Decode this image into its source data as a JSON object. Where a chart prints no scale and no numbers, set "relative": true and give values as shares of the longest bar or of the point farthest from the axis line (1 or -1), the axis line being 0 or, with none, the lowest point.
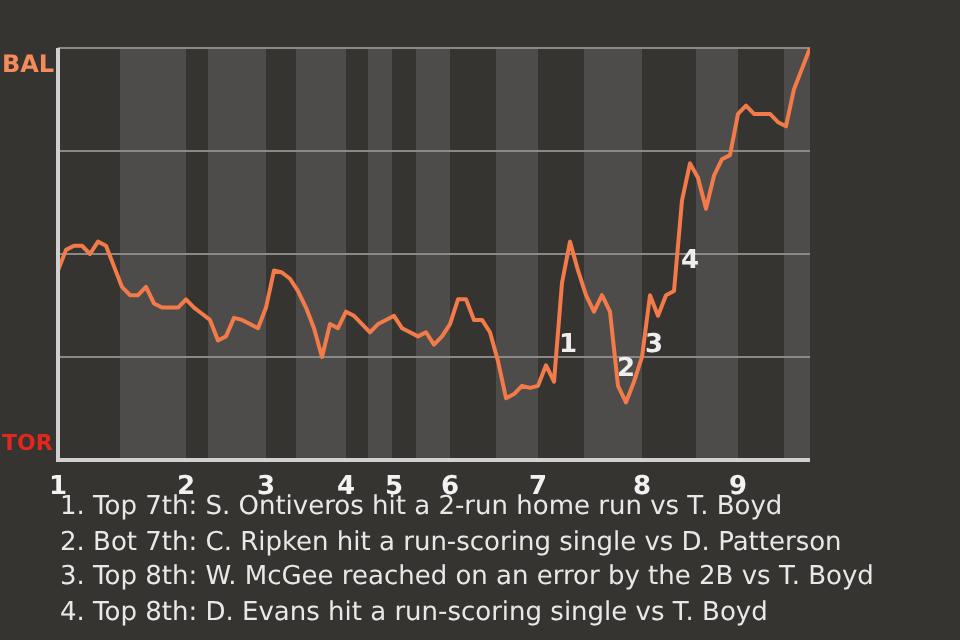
{
  "chart_data": {
    "type": "line",
    "categories": [
      "1",
      null,
      null,
      null,
      null,
      null,
      null,
      null,
      null,
      null,
      null,
      null,
      null,
      null,
      null,
      null,
      "2",
      null,
      null,
      null,
      null,
      null,
      null,
      null,
      null,
      null,
      "3",
      null,
      null,
      null,
      null,
      null,
      null,
      null,
      null,
      null,
      "4",
      null,
      null,
      null,
      null,
      null,
      "5",
      null,
      null,
      null,
      null,
      null,
      null,
      "6",
      null,
      null,
      null,
      null,
      null,
      null,
      null,
      null,
      null,
      null,
      "7",
      null,
      null,
      null,
      null,
      null,
      null,
      null,
      null,
      null,
      null,
      null,
      null,
      "8",
      null,
      null,
      null,
      null,
      null,
      null,
      null,
      null,
      null,
      null,
      null,
      "9",
      null,
      null,
      null,
      null,
      null,
      null,
      null,
      null,
      null
    ],
    "series": [
      {
        "color": "#f37b4a",
        "values": [
          0.46,
          0.51,
          0.52,
          0.52,
          0.5,
          0.53,
          0.52,
          0.47,
          0.42,
          0.4,
          0.4,
          0.42,
          0.38,
          0.37,
          0.37,
          0.37,
          0.39,
          0.37,
          0.355,
          0.34,
          0.29,
          0.3,
          0.345,
          0.34,
          0.33,
          0.32,
          0.37,
          0.46,
          0.455,
          0.44,
          0.41,
          0.37,
          0.32,
          0.25,
          0.33,
          0.32,
          0.36,
          0.35,
          0.33,
          0.31,
          0.33,
          0.34,
          0.35,
          0.32,
          0.31,
          0.3,
          0.31,
          0.28,
          0.3,
          0.33,
          0.39,
          0.39,
          0.34,
          0.34,
          0.31,
          0.24,
          0.15,
          0.16,
          0.18,
          0.175,
          0.18,
          0.23,
          0.19,
          0.43,
          0.53,
          0.46,
          0.4,
          0.36,
          0.4,
          0.36,
          0.18,
          0.14,
          0.19,
          0.25,
          0.4,
          0.35,
          0.4,
          0.41,
          0.63,
          0.72,
          0.685,
          0.61,
          0.69,
          0.73,
          0.74,
          0.84,
          0.86,
          0.84,
          0.84,
          0.84,
          0.82,
          0.81,
          0.9,
          0.95,
          1.0
        ]
      }
    ],
    "relative": true,
    "marker": "none",
    "line_style": "solid",
    "ref_lines": [
      {
        "axis": "y",
        "value": 0.25,
        "color": "#8a8987"
      },
      {
        "axis": "y",
        "value": 0.5,
        "color": "#8a8987"
      },
      {
        "axis": "y",
        "value": 0.75,
        "color": "#8a8987"
      },
      {
        "axis": "y",
        "value": 1,
        "color": "#8a8987"
      }
    ],
    "annotations": [
      "BAL",
      "TOR",
      "1",
      "2",
      "3",
      "4",
      "1. Top 7th: S. Ontiveros hit a 2-run home run vs T. Boyd",
      "2. Bot 7th: C. Ripken hit a run-scoring single vs D. Patterson",
      "3. Top 8th: W. McGee reached on an error by the 2B vs T. Boyd",
      "4. Top 8th: D. Evans hit a run-scoring single vs T. Boyd"
    ]
  }
}
